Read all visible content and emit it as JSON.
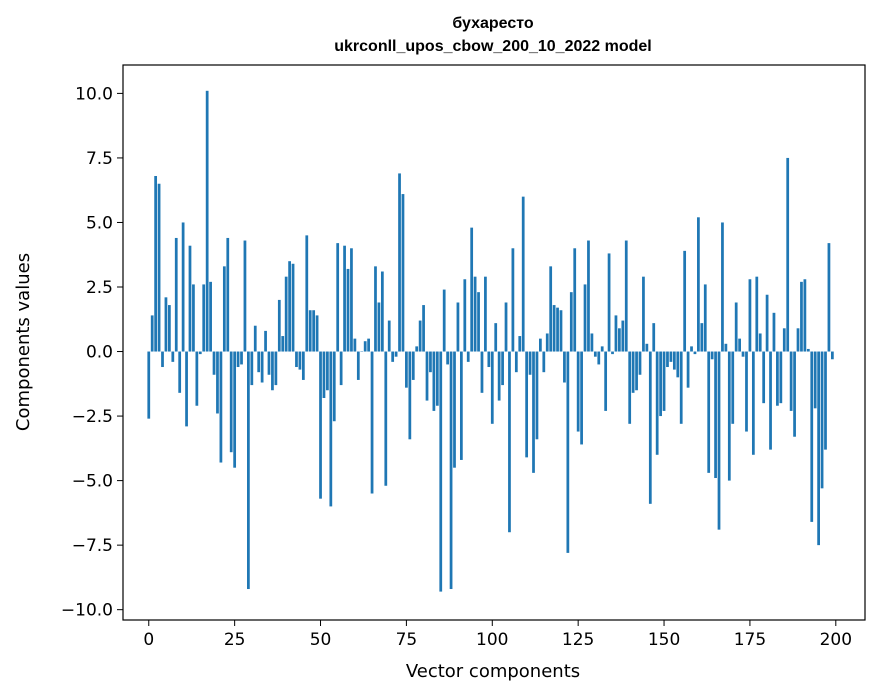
{
  "chart_data": {
    "type": "bar",
    "title": "бухаресто",
    "subtitle": "ukrconll_upos_cbow_200_10_2022 model",
    "xlabel": "Vector components",
    "ylabel": "Components values",
    "xlim": [
      -7.5,
      208.5
    ],
    "ylim": [
      -10.4,
      11.1
    ],
    "xticks": [
      0,
      25,
      50,
      75,
      100,
      125,
      150,
      175,
      200
    ],
    "xtick_labels": [
      "0",
      "25",
      "50",
      "75",
      "100",
      "125",
      "150",
      "175",
      "200"
    ],
    "yticks": [
      10.0,
      7.5,
      5.0,
      2.5,
      0.0,
      -2.5,
      -5.0,
      -7.5,
      -10.0
    ],
    "ytick_labels": [
      "10.0",
      "7.5",
      "5.0",
      "2.5",
      "0.0",
      "−2.5",
      "−5.0",
      "−7.5",
      "−10.0"
    ],
    "bar_color": "#1f77b4",
    "grid": false,
    "values": [
      -2.6,
      1.4,
      6.8,
      6.5,
      -0.6,
      2.1,
      1.8,
      -0.4,
      4.4,
      -1.6,
      5.0,
      -2.9,
      4.1,
      2.6,
      -2.1,
      -0.1,
      2.6,
      10.1,
      2.7,
      -0.9,
      -2.4,
      -4.3,
      3.3,
      4.4,
      -3.9,
      -4.5,
      -0.6,
      -0.5,
      4.3,
      -9.2,
      -1.3,
      1.0,
      -0.8,
      -1.2,
      0.8,
      -0.9,
      -1.5,
      -1.3,
      2.0,
      0.6,
      2.9,
      3.5,
      3.4,
      -0.6,
      -0.7,
      -1.1,
      4.5,
      1.6,
      1.6,
      1.4,
      -5.7,
      -1.8,
      -1.5,
      -6.0,
      -2.7,
      4.2,
      -1.3,
      4.1,
      3.2,
      4.0,
      0.5,
      -1.1,
      0.0,
      0.4,
      0.5,
      -5.5,
      3.3,
      1.9,
      3.1,
      -5.2,
      1.2,
      -0.4,
      -0.2,
      6.9,
      6.1,
      -1.4,
      -3.4,
      -1.1,
      0.2,
      1.2,
      1.8,
      -1.9,
      -0.8,
      -2.3,
      -2.1,
      -9.3,
      2.4,
      -0.5,
      -9.2,
      -4.5,
      1.9,
      -4.2,
      2.8,
      -0.4,
      4.8,
      2.9,
      2.3,
      -1.6,
      2.9,
      -0.6,
      -2.8,
      1.1,
      -1.9,
      -1.3,
      1.9,
      -7.0,
      4.0,
      -0.8,
      0.6,
      6.0,
      -4.1,
      -0.9,
      -4.7,
      -3.4,
      0.5,
      -0.8,
      0.7,
      3.3,
      1.8,
      1.7,
      1.6,
      -1.2,
      -7.8,
      2.3,
      4.0,
      -3.1,
      -3.6,
      2.6,
      4.3,
      0.7,
      -0.2,
      -0.5,
      0.2,
      -2.3,
      3.8,
      -0.1,
      1.4,
      0.9,
      1.2,
      4.3,
      -2.8,
      -1.6,
      -1.5,
      -0.9,
      2.9,
      0.3,
      -5.9,
      1.1,
      -4.0,
      -2.5,
      -2.3,
      -0.6,
      -0.4,
      -0.7,
      -1.0,
      -2.8,
      3.9,
      -1.4,
      0.2,
      -0.1,
      5.2,
      1.1,
      2.6,
      -4.7,
      -0.3,
      -4.9,
      -6.9,
      5.0,
      0.3,
      -5.0,
      -2.8,
      1.9,
      0.5,
      -0.2,
      -3.1,
      2.8,
      -4.0,
      2.9,
      0.7,
      -2.0,
      2.2,
      -3.8,
      1.5,
      -2.1,
      -2.0,
      0.9,
      7.5,
      -2.3,
      -3.3,
      0.9,
      2.7,
      2.8,
      0.1,
      -6.6,
      -2.2,
      -7.5,
      -5.3,
      -3.8,
      4.2,
      -0.3
    ]
  }
}
